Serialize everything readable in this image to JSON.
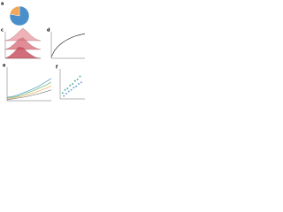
{
  "chart_data": [
    {
      "type": "pie",
      "label": "a",
      "categories": [
        null,
        null
      ],
      "values": [
        78,
        22
      ],
      "colors": [
        "#4a8fc9",
        "#f2a65a"
      ]
    },
    {
      "type": "ridge",
      "label": "c",
      "x": [
        0,
        1,
        2,
        3,
        4,
        5,
        6,
        7,
        8
      ],
      "xlim": [
        0,
        8
      ],
      "ylim": [
        0,
        1
      ],
      "series": [
        {
          "color": "#e8a0a8",
          "values": [
            0,
            0.1,
            0.35,
            0.7,
            1,
            0.7,
            0.35,
            0.1,
            0
          ]
        },
        {
          "color": "#d9707e",
          "values": [
            0,
            0.15,
            0.45,
            0.8,
            0.95,
            0.6,
            0.3,
            0.1,
            0
          ]
        },
        {
          "color": "#c44a5a",
          "values": [
            0,
            0.2,
            0.5,
            0.9,
            0.85,
            0.5,
            0.25,
            0.05,
            0
          ]
        }
      ]
    },
    {
      "type": "line",
      "label": "d",
      "x": [
        0,
        1,
        2,
        3,
        4,
        5,
        6,
        7,
        8,
        9,
        10
      ],
      "xlim": [
        0,
        10
      ],
      "ylim": [
        0,
        1
      ],
      "series": [
        {
          "color": "#333333",
          "values": [
            0.05,
            0.3,
            0.45,
            0.56,
            0.65,
            0.72,
            0.78,
            0.83,
            0.87,
            0.9,
            0.93
          ]
        }
      ]
    },
    {
      "type": "line",
      "label": "e",
      "x": [
        0,
        1,
        2,
        3,
        4,
        5,
        6,
        7,
        8,
        9,
        10
      ],
      "xlim": [
        0,
        10
      ],
      "ylim": [
        0,
        1
      ],
      "series": [
        {
          "color": "#4a8fc9",
          "values": [
            0.1,
            0.12,
            0.15,
            0.2,
            0.25,
            0.3,
            0.36,
            0.42,
            0.5,
            0.58,
            0.66
          ]
        },
        {
          "color": "#5cb85c",
          "values": [
            0.08,
            0.1,
            0.12,
            0.16,
            0.2,
            0.25,
            0.3,
            0.36,
            0.42,
            0.48,
            0.55
          ]
        },
        {
          "color": "#f2a65a",
          "values": [
            0.05,
            0.07,
            0.1,
            0.12,
            0.15,
            0.19,
            0.23,
            0.28,
            0.33,
            0.38,
            0.44
          ]
        },
        {
          "color": "#888888",
          "values": [
            0.03,
            0.05,
            0.07,
            0.09,
            0.11,
            0.14,
            0.17,
            0.2,
            0.24,
            0.28,
            0.32
          ]
        }
      ]
    },
    {
      "type": "scatter",
      "label": "f",
      "xlim": [
        0,
        10
      ],
      "ylim": [
        0,
        10
      ],
      "series": [
        {
          "color": "#2e9e8a",
          "x": [
            1,
            2,
            3,
            4,
            5,
            6,
            7,
            8
          ],
          "values": [
            2,
            3,
            3.5,
            4.5,
            5,
            6,
            6.5,
            7.5
          ]
        },
        {
          "color": "#5b8fd9",
          "x": [
            1.5,
            2.5,
            3.5,
            4.5,
            5.5,
            6.5,
            7.5,
            8.5
          ],
          "values": [
            1,
            1.8,
            2.5,
            3,
            3.8,
            4.2,
            5,
            5.5
          ]
        }
      ]
    }
  ]
}
